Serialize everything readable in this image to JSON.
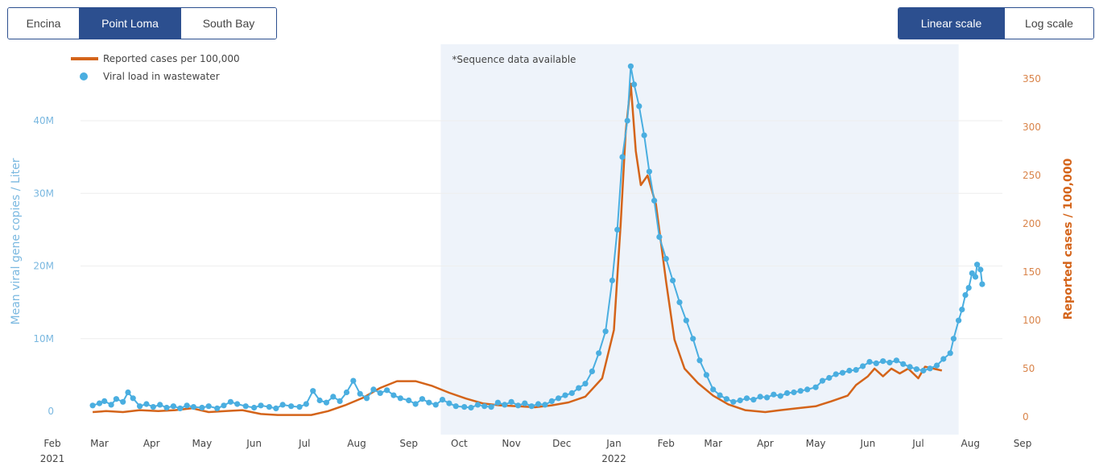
{
  "region_tabs": [
    {
      "label": "Encina",
      "active": false
    },
    {
      "label": "Point Loma",
      "active": true
    },
    {
      "label": "South Bay",
      "active": false
    }
  ],
  "scale_tabs": [
    {
      "label": "Linear scale",
      "active": true
    },
    {
      "label": "Log scale",
      "active": false
    }
  ],
  "colors": {
    "viral": "#4aaee0",
    "cases": "#d4641a",
    "shade": "#eef3fa",
    "button_active": "#2c4f8f",
    "left_axis_text": "#7ab8e0",
    "right_axis_text": "#d9844a"
  },
  "chart_data": {
    "type": "line",
    "annotation": "*Sequence data available",
    "shaded_range": [
      "2021-09-20",
      "2022-07-25"
    ],
    "legend": {
      "placement": "top-left",
      "entries": [
        "Reported cases per 100,000",
        "Viral load in wastewater"
      ]
    },
    "x_axis": {
      "range": [
        "2021-02-01",
        "2022-09-01"
      ],
      "ticks": [
        {
          "label": "Feb",
          "year": "2021",
          "date": "2021-02-01"
        },
        {
          "label": "Mar",
          "year": "",
          "date": "2021-03-01"
        },
        {
          "label": "Apr",
          "year": "",
          "date": "2021-04-01"
        },
        {
          "label": "May",
          "year": "",
          "date": "2021-05-01"
        },
        {
          "label": "Jun",
          "year": "",
          "date": "2021-06-01"
        },
        {
          "label": "Jul",
          "year": "",
          "date": "2021-07-01"
        },
        {
          "label": "Aug",
          "year": "",
          "date": "2021-08-01"
        },
        {
          "label": "Sep",
          "year": "",
          "date": "2021-09-01"
        },
        {
          "label": "Oct",
          "year": "",
          "date": "2021-10-01"
        },
        {
          "label": "Nov",
          "year": "",
          "date": "2021-11-01"
        },
        {
          "label": "Dec",
          "year": "",
          "date": "2021-12-01"
        },
        {
          "label": "Jan",
          "year": "2022",
          "date": "2022-01-01"
        },
        {
          "label": "Feb",
          "year": "",
          "date": "2022-02-01"
        },
        {
          "label": "Mar",
          "year": "",
          "date": "2022-03-01"
        },
        {
          "label": "Apr",
          "year": "",
          "date": "2022-04-01"
        },
        {
          "label": "May",
          "year": "",
          "date": "2022-05-01"
        },
        {
          "label": "Jun",
          "year": "",
          "date": "2022-06-01"
        },
        {
          "label": "Jul",
          "year": "",
          "date": "2022-07-01"
        },
        {
          "label": "Aug",
          "year": "",
          "date": "2022-08-01"
        },
        {
          "label": "Sep",
          "year": "",
          "date": "2022-09-01"
        }
      ]
    },
    "y_left": {
      "label": "Mean viral gene copies / Liter",
      "range": [
        0,
        48000000
      ],
      "ticks": [
        {
          "value": 0,
          "label": "0"
        },
        {
          "value": 10000000,
          "label": "10M"
        },
        {
          "value": 20000000,
          "label": "20M"
        },
        {
          "value": 30000000,
          "label": "30M"
        },
        {
          "value": 40000000,
          "label": "40M"
        }
      ]
    },
    "y_right": {
      "label": "Reported cases / 100,000",
      "range": [
        0,
        365
      ],
      "ticks": [
        {
          "value": 0,
          "label": "0"
        },
        {
          "value": 50,
          "label": "50"
        },
        {
          "value": 100,
          "label": "100"
        },
        {
          "value": 150,
          "label": "150"
        },
        {
          "value": 200,
          "label": "200"
        },
        {
          "value": 250,
          "label": "250"
        },
        {
          "value": 300,
          "label": "300"
        },
        {
          "value": 350,
          "label": "350"
        }
      ]
    },
    "series": [
      {
        "name": "Reported cases per 100,000",
        "kind": "line",
        "axis": "right",
        "points": [
          [
            "2021-02-25",
            5
          ],
          [
            "2021-03-05",
            6
          ],
          [
            "2021-03-15",
            5
          ],
          [
            "2021-03-25",
            7
          ],
          [
            "2021-04-05",
            6
          ],
          [
            "2021-04-15",
            7
          ],
          [
            "2021-04-25",
            9
          ],
          [
            "2021-05-05",
            5
          ],
          [
            "2021-05-15",
            6
          ],
          [
            "2021-05-25",
            7
          ],
          [
            "2021-06-05",
            3
          ],
          [
            "2021-06-15",
            2
          ],
          [
            "2021-06-25",
            2
          ],
          [
            "2021-07-05",
            2
          ],
          [
            "2021-07-15",
            6
          ],
          [
            "2021-07-25",
            12
          ],
          [
            "2021-08-05",
            20
          ],
          [
            "2021-08-15",
            30
          ],
          [
            "2021-08-25",
            37
          ],
          [
            "2021-09-05",
            37
          ],
          [
            "2021-09-15",
            32
          ],
          [
            "2021-09-25",
            25
          ],
          [
            "2021-10-05",
            19
          ],
          [
            "2021-10-15",
            14
          ],
          [
            "2021-10-25",
            12
          ],
          [
            "2021-11-05",
            11
          ],
          [
            "2021-11-15",
            10
          ],
          [
            "2021-11-25",
            12
          ],
          [
            "2021-12-05",
            15
          ],
          [
            "2021-12-15",
            21
          ],
          [
            "2021-12-25",
            40
          ],
          [
            "2022-01-01",
            90
          ],
          [
            "2022-01-05",
            200
          ],
          [
            "2022-01-08",
            295
          ],
          [
            "2022-01-11",
            345
          ],
          [
            "2022-01-14",
            275
          ],
          [
            "2022-01-17",
            240
          ],
          [
            "2022-01-21",
            250
          ],
          [
            "2022-01-26",
            220
          ],
          [
            "2022-02-01",
            140
          ],
          [
            "2022-02-06",
            80
          ],
          [
            "2022-02-12",
            50
          ],
          [
            "2022-02-20",
            35
          ],
          [
            "2022-03-01",
            22
          ],
          [
            "2022-03-10",
            13
          ],
          [
            "2022-03-20",
            7
          ],
          [
            "2022-04-01",
            5
          ],
          [
            "2022-04-10",
            7
          ],
          [
            "2022-04-20",
            9
          ],
          [
            "2022-05-01",
            11
          ],
          [
            "2022-05-10",
            16
          ],
          [
            "2022-05-20",
            22
          ],
          [
            "2022-05-25",
            33
          ],
          [
            "2022-06-01",
            42
          ],
          [
            "2022-06-05",
            50
          ],
          [
            "2022-06-10",
            42
          ],
          [
            "2022-06-15",
            50
          ],
          [
            "2022-06-20",
            45
          ],
          [
            "2022-06-25",
            50
          ],
          [
            "2022-07-01",
            40
          ],
          [
            "2022-07-05",
            52
          ],
          [
            "2022-07-10",
            50
          ],
          [
            "2022-07-15",
            48
          ]
        ]
      },
      {
        "name": "Viral load in wastewater",
        "kind": "markers+line",
        "axis": "left",
        "points": [
          [
            "2021-02-25",
            800000
          ],
          [
            "2021-03-01",
            1100000
          ],
          [
            "2021-03-04",
            1400000
          ],
          [
            "2021-03-08",
            900000
          ],
          [
            "2021-03-11",
            1700000
          ],
          [
            "2021-03-15",
            1300000
          ],
          [
            "2021-03-18",
            2600000
          ],
          [
            "2021-03-21",
            1800000
          ],
          [
            "2021-03-25",
            700000
          ],
          [
            "2021-03-29",
            1000000
          ],
          [
            "2021-04-02",
            600000
          ],
          [
            "2021-04-06",
            900000
          ],
          [
            "2021-04-10",
            500000
          ],
          [
            "2021-04-14",
            700000
          ],
          [
            "2021-04-18",
            400000
          ],
          [
            "2021-04-22",
            800000
          ],
          [
            "2021-04-26",
            600000
          ],
          [
            "2021-05-01",
            500000
          ],
          [
            "2021-05-05",
            700000
          ],
          [
            "2021-05-10",
            400000
          ],
          [
            "2021-05-14",
            800000
          ],
          [
            "2021-05-18",
            1300000
          ],
          [
            "2021-05-22",
            1000000
          ],
          [
            "2021-05-27",
            700000
          ],
          [
            "2021-06-01",
            500000
          ],
          [
            "2021-06-05",
            800000
          ],
          [
            "2021-06-10",
            600000
          ],
          [
            "2021-06-14",
            400000
          ],
          [
            "2021-06-18",
            900000
          ],
          [
            "2021-06-23",
            700000
          ],
          [
            "2021-06-28",
            600000
          ],
          [
            "2021-07-02",
            1000000
          ],
          [
            "2021-07-06",
            2800000
          ],
          [
            "2021-07-10",
            1500000
          ],
          [
            "2021-07-14",
            1200000
          ],
          [
            "2021-07-18",
            2000000
          ],
          [
            "2021-07-22",
            1400000
          ],
          [
            "2021-07-26",
            2600000
          ],
          [
            "2021-07-30",
            4200000
          ],
          [
            "2021-08-03",
            2400000
          ],
          [
            "2021-08-07",
            1800000
          ],
          [
            "2021-08-11",
            3000000
          ],
          [
            "2021-08-15",
            2500000
          ],
          [
            "2021-08-19",
            2900000
          ],
          [
            "2021-08-23",
            2200000
          ],
          [
            "2021-08-27",
            1800000
          ],
          [
            "2021-09-01",
            1500000
          ],
          [
            "2021-09-05",
            1000000
          ],
          [
            "2021-09-09",
            1700000
          ],
          [
            "2021-09-13",
            1200000
          ],
          [
            "2021-09-17",
            900000
          ],
          [
            "2021-09-21",
            1600000
          ],
          [
            "2021-09-25",
            1100000
          ],
          [
            "2021-09-29",
            700000
          ],
          [
            "2021-10-04",
            600000
          ],
          [
            "2021-10-08",
            500000
          ],
          [
            "2021-10-12",
            900000
          ],
          [
            "2021-10-16",
            700000
          ],
          [
            "2021-10-20",
            600000
          ],
          [
            "2021-10-24",
            1200000
          ],
          [
            "2021-10-28",
            900000
          ],
          [
            "2021-11-01",
            1300000
          ],
          [
            "2021-11-05",
            800000
          ],
          [
            "2021-11-09",
            1100000
          ],
          [
            "2021-11-13",
            700000
          ],
          [
            "2021-11-17",
            1000000
          ],
          [
            "2021-11-21",
            900000
          ],
          [
            "2021-11-25",
            1400000
          ],
          [
            "2021-11-29",
            1800000
          ],
          [
            "2021-12-03",
            2200000
          ],
          [
            "2021-12-07",
            2500000
          ],
          [
            "2021-12-11",
            3200000
          ],
          [
            "2021-12-15",
            3800000
          ],
          [
            "2021-12-19",
            5500000
          ],
          [
            "2021-12-23",
            8000000
          ],
          [
            "2021-12-27",
            11000000
          ],
          [
            "2021-12-31",
            18000000
          ],
          [
            "2022-01-03",
            25000000
          ],
          [
            "2022-01-06",
            35000000
          ],
          [
            "2022-01-09",
            40000000
          ],
          [
            "2022-01-11",
            47500000
          ],
          [
            "2022-01-13",
            45000000
          ],
          [
            "2022-01-16",
            42000000
          ],
          [
            "2022-01-19",
            38000000
          ],
          [
            "2022-01-22",
            33000000
          ],
          [
            "2022-01-25",
            29000000
          ],
          [
            "2022-01-28",
            24000000
          ],
          [
            "2022-02-01",
            21000000
          ],
          [
            "2022-02-05",
            18000000
          ],
          [
            "2022-02-09",
            15000000
          ],
          [
            "2022-02-13",
            12500000
          ],
          [
            "2022-02-17",
            10000000
          ],
          [
            "2022-02-21",
            7000000
          ],
          [
            "2022-02-25",
            5000000
          ],
          [
            "2022-03-01",
            3000000
          ],
          [
            "2022-03-05",
            2200000
          ],
          [
            "2022-03-09",
            1700000
          ],
          [
            "2022-03-13",
            1300000
          ],
          [
            "2022-03-17",
            1500000
          ],
          [
            "2022-03-21",
            1800000
          ],
          [
            "2022-03-25",
            1600000
          ],
          [
            "2022-03-29",
            2000000
          ],
          [
            "2022-04-02",
            1900000
          ],
          [
            "2022-04-06",
            2300000
          ],
          [
            "2022-04-10",
            2100000
          ],
          [
            "2022-04-14",
            2500000
          ],
          [
            "2022-04-18",
            2600000
          ],
          [
            "2022-04-22",
            2800000
          ],
          [
            "2022-04-26",
            3000000
          ],
          [
            "2022-05-01",
            3300000
          ],
          [
            "2022-05-05",
            4200000
          ],
          [
            "2022-05-09",
            4600000
          ],
          [
            "2022-05-13",
            5100000
          ],
          [
            "2022-05-17",
            5300000
          ],
          [
            "2022-05-21",
            5600000
          ],
          [
            "2022-05-25",
            5700000
          ],
          [
            "2022-05-29",
            6200000
          ],
          [
            "2022-06-02",
            6800000
          ],
          [
            "2022-06-06",
            6600000
          ],
          [
            "2022-06-10",
            6900000
          ],
          [
            "2022-06-14",
            6700000
          ],
          [
            "2022-06-18",
            7000000
          ],
          [
            "2022-06-22",
            6500000
          ],
          [
            "2022-06-26",
            6100000
          ],
          [
            "2022-06-30",
            5800000
          ],
          [
            "2022-07-04",
            5600000
          ],
          [
            "2022-07-08",
            5900000
          ],
          [
            "2022-07-12",
            6300000
          ],
          [
            "2022-07-16",
            7200000
          ],
          [
            "2022-07-20",
            8000000
          ],
          [
            "2022-07-22",
            10000000
          ],
          [
            "2022-07-25",
            12500000
          ],
          [
            "2022-07-27",
            14000000
          ],
          [
            "2022-07-29",
            16000000
          ],
          [
            "2022-07-31",
            17000000
          ],
          [
            "2022-08-02",
            19000000
          ],
          [
            "2022-08-04",
            18500000
          ],
          [
            "2022-08-05",
            20200000
          ],
          [
            "2022-08-07",
            19500000
          ],
          [
            "2022-08-08",
            17500000
          ]
        ]
      }
    ]
  }
}
